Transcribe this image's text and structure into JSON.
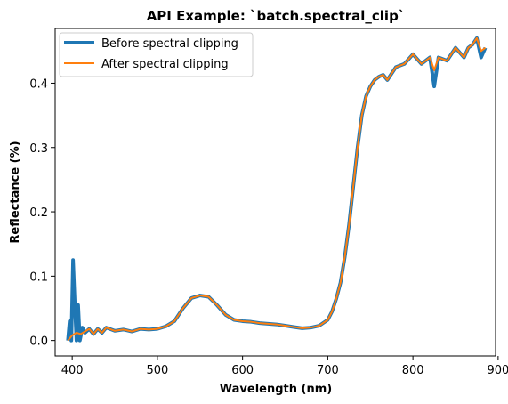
{
  "chart_data": {
    "type": "line",
    "title": "API Example: `batch.spectral_clip`",
    "xlabel": "Wavelength (nm)",
    "ylabel": "Reflectance (%)",
    "xlim": [
      380,
      897
    ],
    "ylim": [
      -0.024,
      0.485
    ],
    "xticks": [
      400,
      500,
      600,
      700,
      800,
      900
    ],
    "yticks": [
      0.0,
      0.1,
      0.2,
      0.3,
      0.4
    ],
    "xtick_labels": [
      "400",
      "500",
      "600",
      "700",
      "800",
      "900"
    ],
    "ytick_labels": [
      "0.0",
      "0.1",
      "0.2",
      "0.3",
      "0.4"
    ],
    "grid": false,
    "legend_position": "upper left",
    "series": [
      {
        "name": "Before spectral clipping",
        "color": "#1f77b4",
        "x": [
          395,
          397,
          399,
          401,
          403,
          405,
          407,
          409,
          412,
          415,
          420,
          425,
          430,
          435,
          440,
          450,
          460,
          470,
          480,
          490,
          500,
          510,
          520,
          530,
          540,
          550,
          560,
          570,
          580,
          590,
          600,
          610,
          620,
          630,
          640,
          650,
          660,
          670,
          680,
          690,
          700,
          705,
          710,
          715,
          720,
          725,
          730,
          735,
          740,
          745,
          750,
          755,
          760,
          765,
          770,
          775,
          780,
          790,
          800,
          810,
          820,
          825,
          830,
          840,
          850,
          860,
          865,
          870,
          875,
          880,
          885
        ],
        "y": [
          0.0,
          0.03,
          0.0,
          0.125,
          0.06,
          0.0,
          0.055,
          0.0,
          0.02,
          0.012,
          0.018,
          0.01,
          0.018,
          0.012,
          0.02,
          0.015,
          0.017,
          0.014,
          0.018,
          0.017,
          0.018,
          0.022,
          0.03,
          0.05,
          0.066,
          0.07,
          0.068,
          0.055,
          0.04,
          0.032,
          0.03,
          0.029,
          0.027,
          0.026,
          0.025,
          0.023,
          0.021,
          0.019,
          0.02,
          0.023,
          0.032,
          0.045,
          0.065,
          0.09,
          0.13,
          0.18,
          0.24,
          0.3,
          0.35,
          0.38,
          0.395,
          0.405,
          0.41,
          0.413,
          0.405,
          0.415,
          0.425,
          0.43,
          0.445,
          0.43,
          0.44,
          0.395,
          0.44,
          0.435,
          0.455,
          0.44,
          0.455,
          0.46,
          0.47,
          0.44,
          0.455
        ]
      },
      {
        "name": "After spectral clipping",
        "color": "#ff7f0e",
        "x": [
          395,
          400,
          405,
          410,
          415,
          420,
          425,
          430,
          435,
          440,
          450,
          460,
          470,
          480,
          490,
          500,
          510,
          520,
          530,
          540,
          550,
          560,
          570,
          580,
          590,
          600,
          610,
          620,
          630,
          640,
          650,
          660,
          670,
          680,
          690,
          700,
          705,
          710,
          715,
          720,
          725,
          730,
          735,
          740,
          745,
          750,
          755,
          760,
          765,
          770,
          775,
          780,
          790,
          800,
          810,
          820,
          825,
          830,
          840,
          850,
          860,
          865,
          870,
          875,
          880,
          885
        ],
        "y": [
          0.0,
          0.008,
          0.012,
          0.01,
          0.014,
          0.018,
          0.01,
          0.018,
          0.012,
          0.02,
          0.015,
          0.017,
          0.014,
          0.018,
          0.017,
          0.018,
          0.022,
          0.03,
          0.05,
          0.066,
          0.07,
          0.068,
          0.055,
          0.04,
          0.032,
          0.03,
          0.029,
          0.027,
          0.026,
          0.025,
          0.023,
          0.021,
          0.019,
          0.02,
          0.023,
          0.032,
          0.045,
          0.065,
          0.09,
          0.13,
          0.18,
          0.24,
          0.3,
          0.35,
          0.38,
          0.395,
          0.405,
          0.41,
          0.413,
          0.405,
          0.415,
          0.425,
          0.43,
          0.445,
          0.43,
          0.44,
          0.42,
          0.44,
          0.435,
          0.455,
          0.44,
          0.455,
          0.46,
          0.47,
          0.45,
          0.455
        ]
      }
    ]
  }
}
